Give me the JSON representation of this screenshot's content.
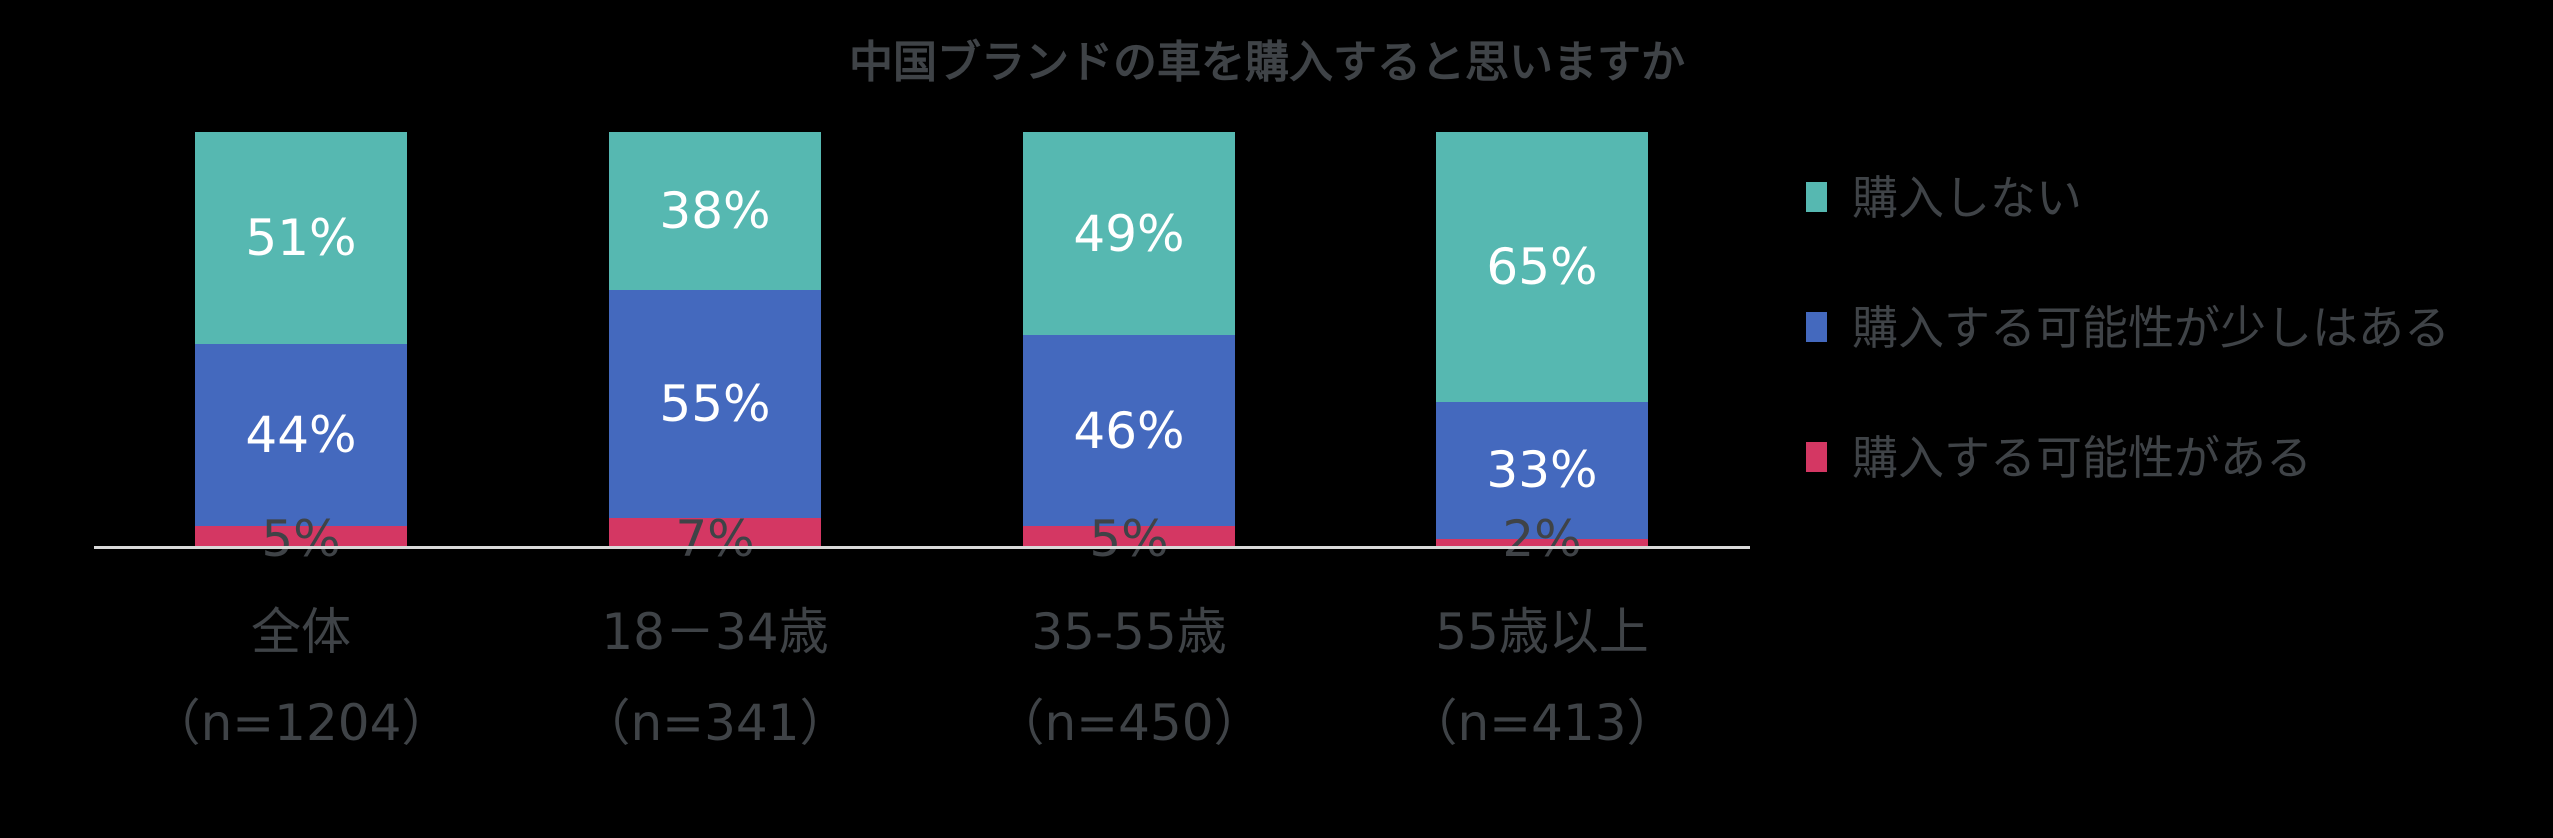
{
  "chart_data": {
    "type": "bar",
    "stacked": true,
    "percent": true,
    "title": "中国ブランドの車を購入すると思いますか",
    "xlabel": "",
    "ylabel": "",
    "ylim": [
      0,
      100
    ],
    "grid": false,
    "legend_position": "right",
    "categories": [
      "全体",
      "18－34歳",
      "35-55歳",
      "55歳以上"
    ],
    "category_n": [
      "（n=1204）",
      "（n=341）",
      "（n=450）",
      "（n=413）"
    ],
    "series": [
      {
        "name": "購入する可能性がある",
        "color": "#D43763",
        "values": [
          5,
          7,
          5,
          2
        ]
      },
      {
        "name": "購入する可能性が少しはある",
        "color": "#4469BE",
        "values": [
          44,
          55,
          46,
          33
        ]
      },
      {
        "name": "購入しない",
        "color": "#56B8B1",
        "values": [
          51,
          38,
          49,
          65
        ]
      }
    ]
  },
  "title": "中国ブランドの車を購入すると思いますか",
  "bars": [
    {
      "category": "全体",
      "n": "（n=1204）",
      "segments": [
        {
          "series": "購入する可能性がある",
          "value": 5,
          "label": "5%"
        },
        {
          "series": "購入する可能性が少しはある",
          "value": 44,
          "label": "44%"
        },
        {
          "series": "購入しない",
          "value": 51,
          "label": "51%"
        }
      ]
    },
    {
      "category": "18－34歳",
      "n": "（n=341）",
      "segments": [
        {
          "series": "購入する可能性がある",
          "value": 7,
          "label": "7%"
        },
        {
          "series": "購入する可能性が少しはある",
          "value": 55,
          "label": "55%"
        },
        {
          "series": "購入しない",
          "value": 38,
          "label": "38%"
        }
      ]
    },
    {
      "category": "35-55歳",
      "n": "（n=450）",
      "segments": [
        {
          "series": "購入する可能性がある",
          "value": 5,
          "label": "5%"
        },
        {
          "series": "購入する可能性が少しはある",
          "value": 46,
          "label": "46%"
        },
        {
          "series": "購入しない",
          "value": 49,
          "label": "49%"
        }
      ]
    },
    {
      "category": "55歳以上",
      "n": "（n=413）",
      "segments": [
        {
          "series": "購入する可能性がある",
          "value": 2,
          "label": "2%"
        },
        {
          "series": "購入する可能性が少しはある",
          "value": 33,
          "label": "33%"
        },
        {
          "series": "購入しない",
          "value": 65,
          "label": "65%"
        }
      ]
    }
  ],
  "legend": [
    {
      "label": "購入しない",
      "color": "#56B8B1"
    },
    {
      "label": "購入する可能性が少しはある",
      "color": "#4469BE"
    },
    {
      "label": "購入する可能性がある",
      "color": "#D43763"
    }
  ],
  "colors": {
    "background": "#000000",
    "text": "#3F4347",
    "axis": "#D9D9D9",
    "teal": "#56B8B1",
    "blue": "#4469BE",
    "red": "#D43763",
    "data_label_inside": "#FFFFFF"
  }
}
